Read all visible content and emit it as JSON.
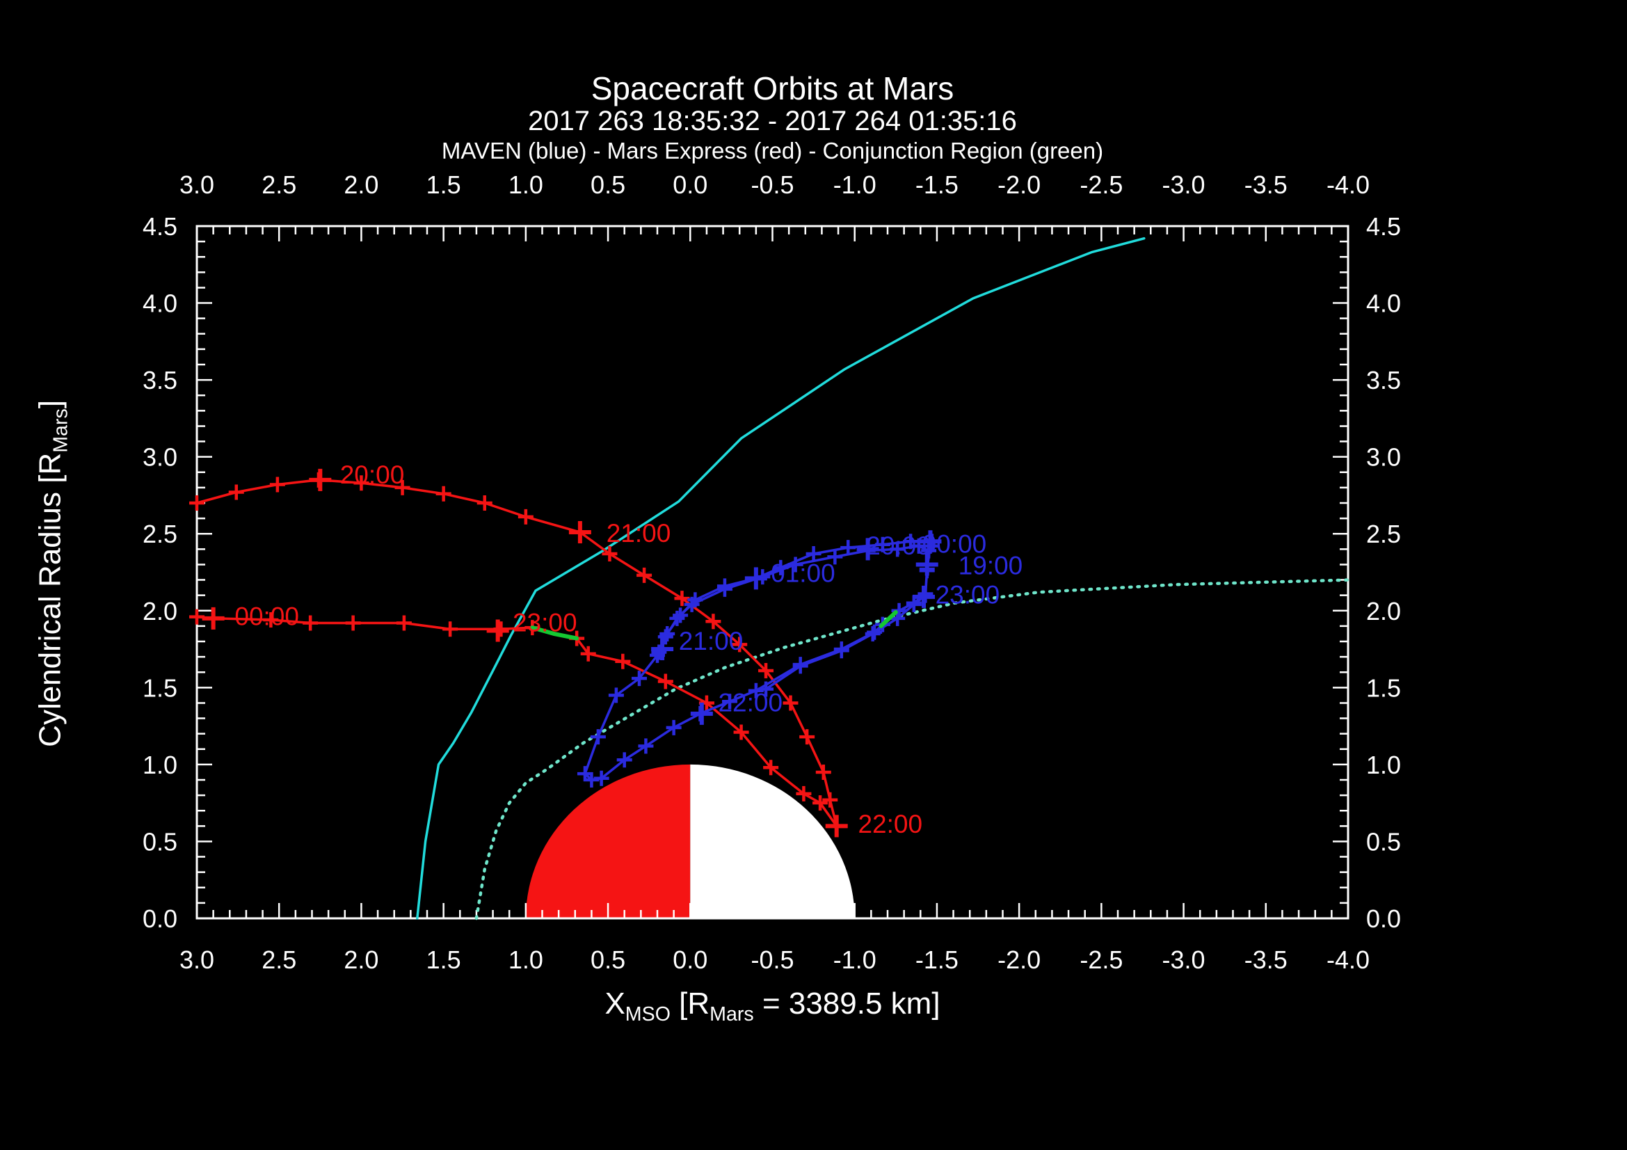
{
  "header": {
    "title": "Spacecraft Orbits at Mars",
    "subtitle": "2017 263 18:35:32 - 2017 264 01:35:16",
    "legend_line": "MAVEN (blue) - Mars Express (red) - Conjunction Region (green)"
  },
  "axis_titles": {
    "x_main": "X",
    "x_sub": "MSO",
    "x_mid": " [R",
    "x_sub2": "Mars",
    "x_end": " = 3389.5 km]",
    "y_main": "Cylendrical Radius [R",
    "y_sub": "Mars",
    "y_end": "]"
  },
  "colors": {
    "background": "#000000",
    "frame": "#ffffff",
    "maven_blue": "#2b2bdf",
    "mex_red": "#f51414",
    "bow_shock_cyan": "#21dcdc",
    "mpb_dotted_cyan": "#6fe6cb",
    "conjunction_green": "#15c832",
    "mars_day": "#f51414",
    "mars_night": "#ffffff"
  },
  "chart_data": {
    "type": "line",
    "title": "Spacecraft Orbits at Mars",
    "xlabel": "X_MSO [R_Mars = 3389.5 km]",
    "ylabel": "Cylendrical Radius [R_Mars]",
    "x_range": [
      3.0,
      -4.0
    ],
    "y_range": [
      0.0,
      4.5
    ],
    "x_axis_reversed": true,
    "grid": false,
    "x_tick_labels": [
      "3.0",
      "2.5",
      "2.0",
      "1.5",
      "1.0",
      "0.5",
      "0.0",
      "-0.5",
      "-1.0",
      "-1.5",
      "-2.0",
      "-2.5",
      "-3.0",
      "-3.5",
      "-4.0"
    ],
    "y_tick_labels": [
      "4.5",
      "4.0",
      "3.5",
      "3.0",
      "2.5",
      "2.0",
      "1.5",
      "1.0",
      "0.5",
      "0.0"
    ],
    "minor_tick_step": 0.1,
    "mars": {
      "center_x": 0.0,
      "radius": 1.0,
      "dayside": "+X red half",
      "nightside": "-X white half"
    },
    "series": [
      {
        "name": "bow-shock",
        "style": "solid",
        "color_key": "bow_shock_cyan",
        "markers": false,
        "width": 3.5,
        "points": [
          [
            1.66,
            0.0
          ],
          [
            1.61,
            0.5
          ],
          [
            1.53,
            1.0
          ],
          [
            1.44,
            1.14
          ],
          [
            1.33,
            1.34
          ],
          [
            1.19,
            1.63
          ],
          [
            1.09,
            1.84
          ],
          [
            0.94,
            2.13
          ],
          [
            0.53,
            2.39
          ],
          [
            0.07,
            2.71
          ],
          [
            -0.31,
            3.12
          ],
          [
            -0.94,
            3.57
          ],
          [
            -1.72,
            4.03
          ],
          [
            -2.44,
            4.33
          ],
          [
            -2.76,
            4.42
          ]
        ]
      },
      {
        "name": "magnetic-pileup-boundary",
        "style": "dotted",
        "color_key": "mpb_dotted_cyan",
        "markers": false,
        "width": 4.5,
        "points": [
          [
            1.3,
            0.0
          ],
          [
            1.25,
            0.32
          ],
          [
            1.18,
            0.57
          ],
          [
            1.1,
            0.75
          ],
          [
            1.0,
            0.88
          ],
          [
            0.87,
            0.97
          ],
          [
            0.65,
            1.14
          ],
          [
            0.09,
            1.49
          ],
          [
            -0.21,
            1.63
          ],
          [
            -0.57,
            1.76
          ],
          [
            -1.17,
            1.94
          ],
          [
            -1.61,
            2.05
          ],
          [
            -2.12,
            2.12
          ],
          [
            -2.96,
            2.17
          ],
          [
            -4.0,
            2.2
          ]
        ]
      },
      {
        "name": "mars-express-orbit",
        "style": "solid",
        "color_key": "mex_red",
        "markers": true,
        "width": 3.5,
        "points": [
          [
            3.0,
            2.7
          ],
          [
            2.76,
            2.77
          ],
          [
            2.51,
            2.82
          ],
          [
            2.26,
            2.85
          ],
          [
            2.0,
            2.83
          ],
          [
            1.75,
            2.8
          ],
          [
            1.5,
            2.76
          ],
          [
            1.25,
            2.7
          ],
          [
            1.0,
            2.61
          ],
          [
            0.67,
            2.51
          ],
          [
            0.49,
            2.37
          ],
          [
            0.28,
            2.23
          ],
          [
            0.05,
            2.08
          ],
          [
            -0.14,
            1.93
          ],
          [
            -0.3,
            1.78
          ],
          [
            -0.46,
            1.61
          ],
          [
            -0.61,
            1.4
          ],
          [
            -0.71,
            1.18
          ],
          [
            -0.81,
            0.95
          ],
          [
            -0.85,
            0.77
          ],
          [
            -0.89,
            0.6
          ],
          [
            -0.79,
            0.75
          ],
          [
            -0.69,
            0.81
          ],
          [
            -0.49,
            0.98
          ],
          [
            -0.31,
            1.21
          ],
          [
            -0.1,
            1.4
          ],
          [
            0.15,
            1.54
          ],
          [
            0.41,
            1.67
          ],
          [
            0.62,
            1.72
          ],
          [
            0.69,
            1.82
          ],
          [
            0.96,
            1.89
          ],
          [
            1.15,
            1.88
          ],
          [
            1.46,
            1.88
          ],
          [
            1.74,
            1.92
          ],
          [
            2.05,
            1.92
          ],
          [
            2.31,
            1.92
          ],
          [
            2.55,
            1.94
          ],
          [
            2.9,
            1.95
          ],
          [
            3.0,
            1.96
          ]
        ]
      },
      {
        "name": "maven-orbit",
        "style": "solid",
        "color_key": "maven_blue",
        "markers": true,
        "width": 3.5,
        "points": [
          [
            -0.46,
            1.49
          ],
          [
            -0.67,
            1.64
          ],
          [
            -0.92,
            1.74
          ],
          [
            -1.11,
            1.85
          ],
          [
            -1.26,
            1.95
          ],
          [
            -1.36,
            2.04
          ],
          [
            -1.43,
            2.1
          ],
          [
            -1.44,
            2.26
          ],
          [
            -1.45,
            2.39
          ],
          [
            -1.39,
            2.42
          ],
          [
            -1.26,
            2.4
          ],
          [
            -1.08,
            2.39
          ],
          [
            -0.88,
            2.35
          ],
          [
            -0.64,
            2.3
          ],
          [
            -0.44,
            2.22
          ],
          [
            -0.21,
            2.14
          ],
          [
            -0.01,
            2.04
          ],
          [
            0.08,
            1.95
          ],
          [
            0.15,
            1.83
          ],
          [
            0.2,
            1.71
          ],
          [
            0.31,
            1.56
          ],
          [
            0.45,
            1.45
          ],
          [
            0.56,
            1.18
          ],
          [
            0.64,
            0.94
          ],
          [
            0.6,
            0.9
          ],
          [
            0.54,
            0.91
          ],
          [
            0.4,
            1.03
          ],
          [
            0.27,
            1.12
          ],
          [
            0.1,
            1.24
          ],
          [
            -0.06,
            1.33
          ],
          [
            -0.24,
            1.41
          ],
          [
            -0.4,
            1.48
          ],
          [
            -0.67,
            1.65
          ],
          [
            -0.92,
            1.75
          ],
          [
            -1.12,
            1.86
          ],
          [
            -1.17,
            1.91
          ],
          [
            -1.27,
            2.0
          ],
          [
            -1.36,
            2.05
          ],
          [
            -1.43,
            2.11
          ],
          [
            -1.44,
            2.27
          ],
          [
            -1.46,
            2.42
          ],
          [
            -1.47,
            2.45
          ],
          [
            -1.34,
            2.45
          ],
          [
            -1.17,
            2.43
          ],
          [
            -0.96,
            2.41
          ],
          [
            -0.75,
            2.37
          ],
          [
            -0.55,
            2.28
          ],
          [
            -0.4,
            2.21
          ],
          [
            -0.21,
            2.16
          ],
          [
            -0.03,
            2.07
          ],
          [
            0.06,
            1.97
          ],
          [
            0.14,
            1.85
          ],
          [
            0.19,
            1.73
          ]
        ]
      },
      {
        "name": "conjunction-on-mex",
        "style": "solid",
        "color_key": "conjunction_green",
        "markers": false,
        "width": 6,
        "points": [
          [
            0.69,
            1.82
          ],
          [
            0.83,
            1.85
          ],
          [
            0.96,
            1.89
          ]
        ]
      },
      {
        "name": "conjunction-on-maven",
        "style": "solid",
        "color_key": "conjunction_green",
        "markers": false,
        "width": 6,
        "points": [
          [
            -1.16,
            1.9
          ],
          [
            -1.25,
            1.99
          ]
        ]
      }
    ],
    "time_labels": [
      {
        "series": "mars-express",
        "text": "20:00",
        "x": 2.13,
        "y": 2.87,
        "color_key": "mex_red",
        "marker": [
          2.25,
          2.85
        ]
      },
      {
        "series": "mars-express",
        "text": "21:00",
        "x": 0.51,
        "y": 2.49,
        "color_key": "mex_red",
        "marker": [
          0.67,
          2.51
        ]
      },
      {
        "series": "mars-express",
        "text": "22:00",
        "x": -1.02,
        "y": 0.6,
        "color_key": "mex_red",
        "marker": [
          -0.89,
          0.6
        ]
      },
      {
        "series": "mars-express",
        "text": "23:00",
        "x": 1.08,
        "y": 1.91,
        "color_key": "mex_red",
        "marker": [
          1.17,
          1.87
        ]
      },
      {
        "series": "mars-express",
        "text": "00:00",
        "x": 2.77,
        "y": 1.95,
        "color_key": "mex_red",
        "marker": [
          2.9,
          1.95
        ]
      },
      {
        "series": "maven",
        "text": "20:00",
        "x": -1.07,
        "y": 2.41,
        "color_key": "maven_blue",
        "marker": [
          -1.08,
          2.4
        ]
      },
      {
        "series": "maven",
        "text": "00:00",
        "x": -1.41,
        "y": 2.42,
        "color_key": "maven_blue",
        "marker": [
          -1.46,
          2.45
        ]
      },
      {
        "series": "maven",
        "text": "19:00",
        "x": -1.63,
        "y": 2.28,
        "color_key": "maven_blue",
        "marker": [
          -1.44,
          2.3
        ]
      },
      {
        "series": "maven",
        "text": "23:00",
        "x": -1.49,
        "y": 2.09,
        "color_key": "maven_blue",
        "marker": [
          -1.42,
          2.09
        ]
      },
      {
        "series": "maven",
        "text": "01:00",
        "x": -0.49,
        "y": 2.23,
        "color_key": "maven_blue",
        "marker": [
          -0.4,
          2.21
        ]
      },
      {
        "series": "maven",
        "text": "21:00",
        "x": 0.07,
        "y": 1.79,
        "color_key": "maven_blue",
        "marker": [
          0.17,
          1.75
        ]
      },
      {
        "series": "maven",
        "text": "22:00",
        "x": -0.17,
        "y": 1.39,
        "color_key": "maven_blue",
        "marker": [
          -0.07,
          1.33
        ]
      }
    ]
  }
}
